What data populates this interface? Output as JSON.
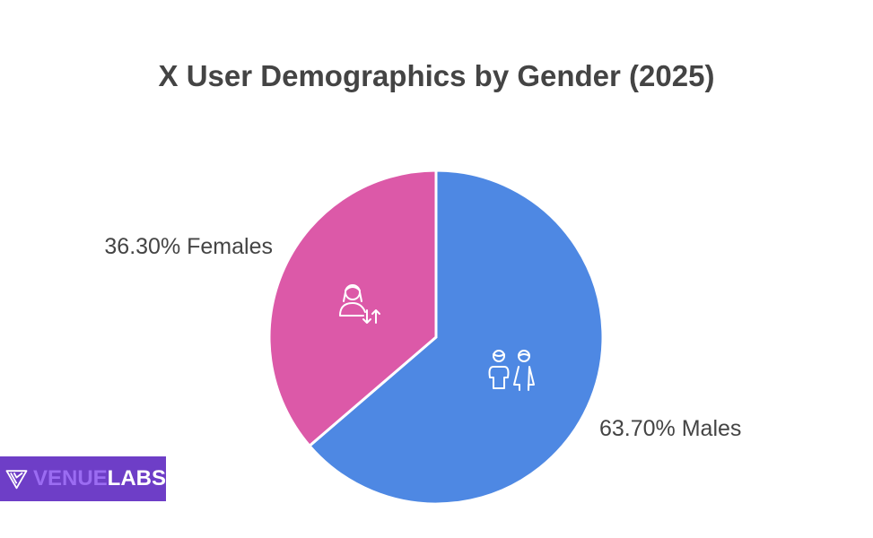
{
  "chart_data": {
    "type": "pie",
    "title": "X User Demographics by Gender (2025)",
    "slices": [
      {
        "name": "Males",
        "value": 63.7,
        "label": "63.70% Males",
        "color": "#4e88e3",
        "icon": "boy-girl-icon"
      },
      {
        "name": "Females",
        "value": 36.3,
        "label": "36.30% Females",
        "color": "#dc59a8",
        "icon": "female-user-arrows-icon"
      }
    ]
  },
  "logo": {
    "part1": "VENUE",
    "part2": "LABS"
  }
}
